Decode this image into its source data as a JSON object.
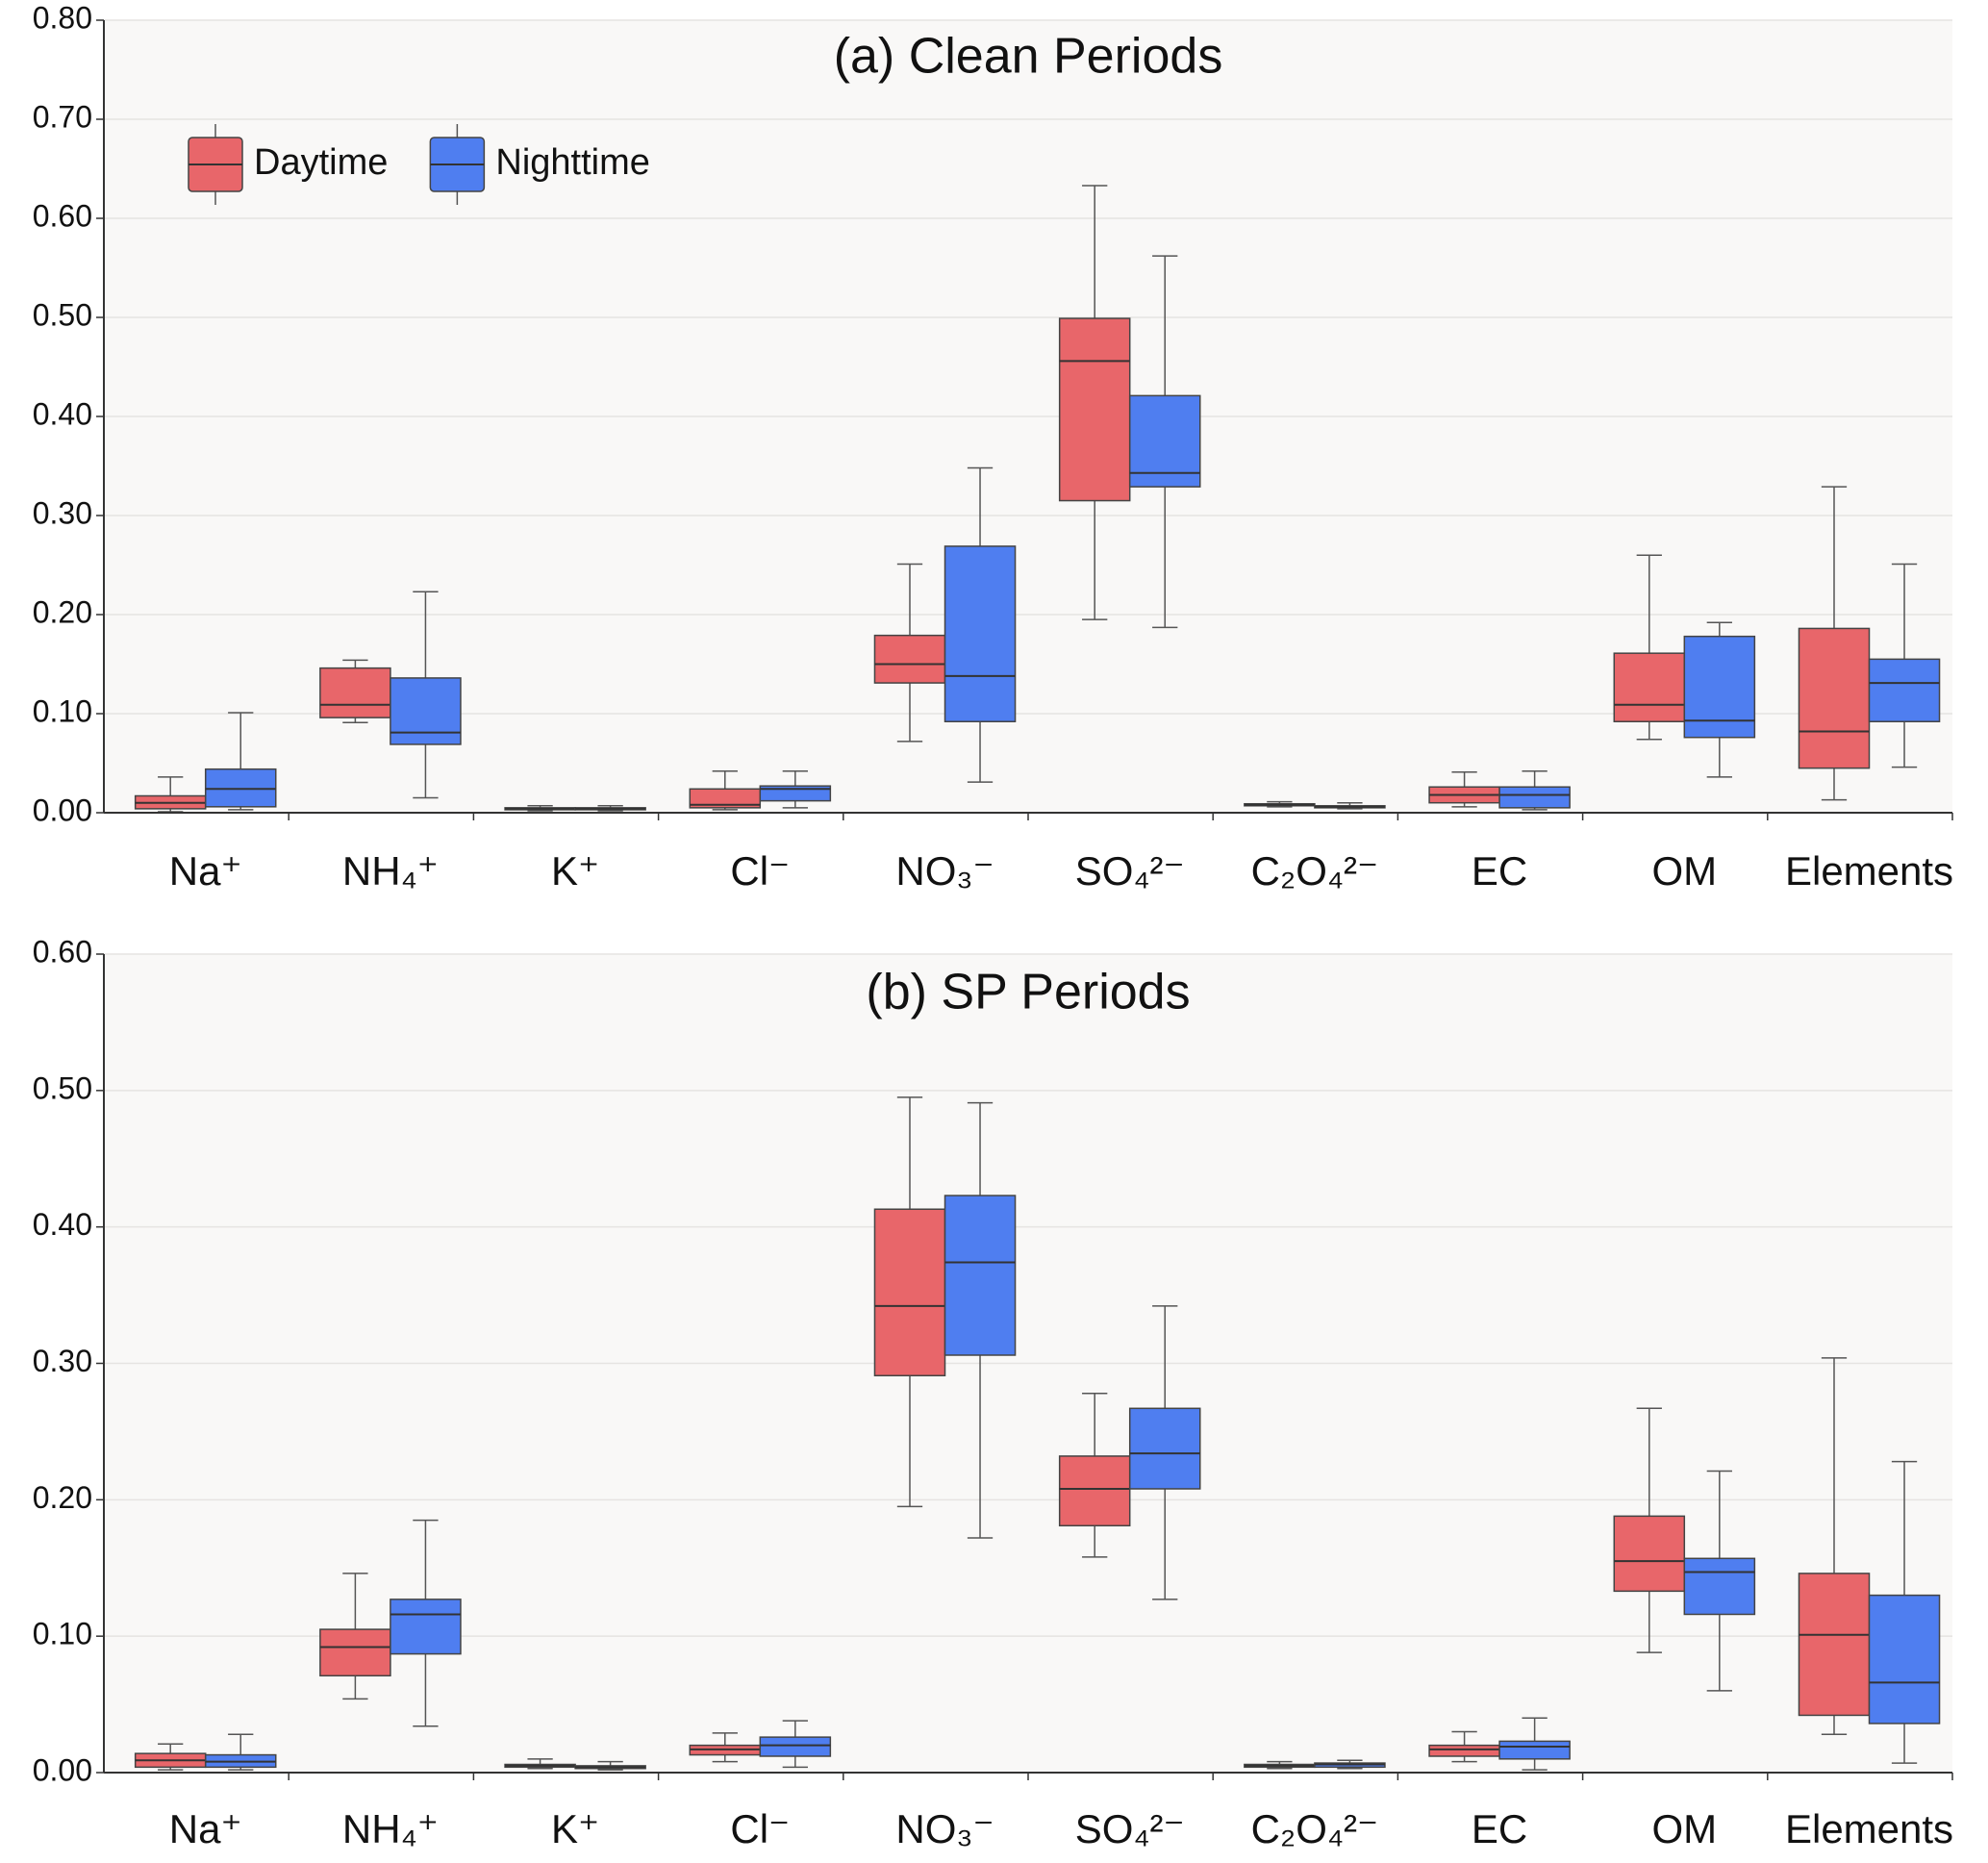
{
  "chart_data": [
    {
      "type": "box",
      "title": "(a) Clean Periods",
      "categories": [
        "Na⁺",
        "NH₄⁺",
        "K⁺",
        "Cl⁻",
        "NO₃⁻",
        "SO₄²⁻",
        "C₂O₄²⁻",
        "EC",
        "OM",
        "Elements"
      ],
      "ylim": [
        0,
        0.8
      ],
      "yticks": [
        {
          "value": 0,
          "label": "0.00"
        },
        {
          "value": 0.1,
          "label": "0.10"
        },
        {
          "value": 0.2,
          "label": "0.20"
        },
        {
          "value": 0.3,
          "label": "0.30"
        },
        {
          "value": 0.4,
          "label": "0.40"
        },
        {
          "value": 0.5,
          "label": "0.50"
        },
        {
          "value": 0.6,
          "label": "0.60"
        },
        {
          "value": 0.7,
          "label": "0.70"
        },
        {
          "value": 0.8,
          "label": "0.80"
        }
      ],
      "grid": true,
      "legend": "upper left",
      "series": [
        {
          "name": "Daytime",
          "color": "#e8666a",
          "values": [
            {
              "min": 0.001,
              "q1": 0.004,
              "median": 0.01,
              "q3": 0.017,
              "max": 0.036
            },
            {
              "min": 0.091,
              "q1": 0.096,
              "median": 0.109,
              "q3": 0.146,
              "max": 0.154
            },
            {
              "min": 0.002,
              "q1": 0.003,
              "median": 0.004,
              "q3": 0.005,
              "max": 0.007
            },
            {
              "min": 0.003,
              "q1": 0.005,
              "median": 0.008,
              "q3": 0.024,
              "max": 0.042
            },
            {
              "min": 0.072,
              "q1": 0.131,
              "median": 0.15,
              "q3": 0.179,
              "max": 0.251
            },
            {
              "min": 0.195,
              "q1": 0.315,
              "median": 0.456,
              "q3": 0.499,
              "max": 0.633
            },
            {
              "min": 0.006,
              "q1": 0.007,
              "median": 0.008,
              "q3": 0.009,
              "max": 0.011
            },
            {
              "min": 0.006,
              "q1": 0.01,
              "median": 0.018,
              "q3": 0.026,
              "max": 0.041
            },
            {
              "min": 0.074,
              "q1": 0.092,
              "median": 0.109,
              "q3": 0.161,
              "max": 0.26
            },
            {
              "min": 0.013,
              "q1": 0.045,
              "median": 0.082,
              "q3": 0.186,
              "max": 0.329
            }
          ]
        },
        {
          "name": "Nighttime",
          "color": "#4f7ef0",
          "values": [
            {
              "min": 0.003,
              "q1": 0.006,
              "median": 0.024,
              "q3": 0.044,
              "max": 0.101
            },
            {
              "min": 0.015,
              "q1": 0.069,
              "median": 0.081,
              "q3": 0.136,
              "max": 0.223
            },
            {
              "min": 0.002,
              "q1": 0.003,
              "median": 0.004,
              "q3": 0.005,
              "max": 0.007
            },
            {
              "min": 0.005,
              "q1": 0.012,
              "median": 0.024,
              "q3": 0.027,
              "max": 0.042
            },
            {
              "min": 0.031,
              "q1": 0.092,
              "median": 0.138,
              "q3": 0.269,
              "max": 0.348
            },
            {
              "min": 0.187,
              "q1": 0.329,
              "median": 0.343,
              "q3": 0.421,
              "max": 0.562
            },
            {
              "min": 0.004,
              "q1": 0.005,
              "median": 0.006,
              "q3": 0.007,
              "max": 0.01
            },
            {
              "min": 0.003,
              "q1": 0.005,
              "median": 0.018,
              "q3": 0.026,
              "max": 0.042
            },
            {
              "min": 0.036,
              "q1": 0.076,
              "median": 0.093,
              "q3": 0.178,
              "max": 0.192
            },
            {
              "min": 0.046,
              "q1": 0.092,
              "median": 0.131,
              "q3": 0.155,
              "max": 0.251
            }
          ]
        }
      ]
    },
    {
      "type": "box",
      "title": "(b) SP Periods",
      "categories": [
        "Na⁺",
        "NH₄⁺",
        "K⁺",
        "Cl⁻",
        "NO₃⁻",
        "SO₄²⁻",
        "C₂O₄²⁻",
        "EC",
        "OM",
        "Elements"
      ],
      "ylim": [
        0,
        0.6
      ],
      "yticks": [
        {
          "value": 0,
          "label": "0.00"
        },
        {
          "value": 0.1,
          "label": "0.10"
        },
        {
          "value": 0.2,
          "label": "0.20"
        },
        {
          "value": 0.3,
          "label": "0.30"
        },
        {
          "value": 0.4,
          "label": "0.40"
        },
        {
          "value": 0.5,
          "label": "0.50"
        },
        {
          "value": 0.6,
          "label": "0.60"
        }
      ],
      "grid": true,
      "series": [
        {
          "color": "#e8666a",
          "values": [
            {
              "min": 0.002,
              "q1": 0.004,
              "median": 0.009,
              "q3": 0.014,
              "max": 0.021
            },
            {
              "min": 0.054,
              "q1": 0.071,
              "median": 0.092,
              "q3": 0.105,
              "max": 0.146
            },
            {
              "min": 0.003,
              "q1": 0.004,
              "median": 0.005,
              "q3": 0.006,
              "max": 0.01
            },
            {
              "min": 0.008,
              "q1": 0.013,
              "median": 0.017,
              "q3": 0.02,
              "max": 0.029
            },
            {
              "min": 0.195,
              "q1": 0.291,
              "median": 0.342,
              "q3": 0.413,
              "max": 0.495
            },
            {
              "min": 0.158,
              "q1": 0.181,
              "median": 0.208,
              "q3": 0.232,
              "max": 0.278
            },
            {
              "min": 0.003,
              "q1": 0.004,
              "median": 0.005,
              "q3": 0.006,
              "max": 0.008
            },
            {
              "min": 0.008,
              "q1": 0.012,
              "median": 0.017,
              "q3": 0.02,
              "max": 0.03
            },
            {
              "min": 0.088,
              "q1": 0.133,
              "median": 0.155,
              "q3": 0.188,
              "max": 0.267
            },
            {
              "min": 0.028,
              "q1": 0.042,
              "median": 0.101,
              "q3": 0.146,
              "max": 0.304
            }
          ]
        },
        {
          "color": "#4f7ef0",
          "values": [
            {
              "min": 0.002,
              "q1": 0.004,
              "median": 0.008,
              "q3": 0.013,
              "max": 0.028
            },
            {
              "min": 0.034,
              "q1": 0.087,
              "median": 0.116,
              "q3": 0.127,
              "max": 0.185
            },
            {
              "min": 0.002,
              "q1": 0.003,
              "median": 0.004,
              "q3": 0.005,
              "max": 0.008
            },
            {
              "min": 0.004,
              "q1": 0.012,
              "median": 0.02,
              "q3": 0.026,
              "max": 0.038
            },
            {
              "min": 0.172,
              "q1": 0.306,
              "median": 0.374,
              "q3": 0.423,
              "max": 0.491
            },
            {
              "min": 0.127,
              "q1": 0.208,
              "median": 0.234,
              "q3": 0.267,
              "max": 0.342
            },
            {
              "min": 0.003,
              "q1": 0.004,
              "median": 0.006,
              "q3": 0.007,
              "max": 0.009
            },
            {
              "min": 0.002,
              "q1": 0.01,
              "median": 0.019,
              "q3": 0.023,
              "max": 0.04
            },
            {
              "min": 0.06,
              "q1": 0.116,
              "median": 0.147,
              "q3": 0.157,
              "max": 0.221
            },
            {
              "min": 0.007,
              "q1": 0.036,
              "median": 0.066,
              "q3": 0.13,
              "max": 0.228
            }
          ]
        }
      ]
    }
  ]
}
